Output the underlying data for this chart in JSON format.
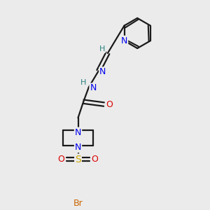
{
  "background_color": "#ebebeb",
  "bond_color": "#1a1a1a",
  "colors": {
    "N": "#0000ee",
    "O": "#dd0000",
    "S": "#ccaa00",
    "Br": "#cc6600",
    "H": "#2a8080",
    "C": "#1a1a1a"
  },
  "figsize": [
    3.0,
    3.0
  ],
  "dpi": 100
}
